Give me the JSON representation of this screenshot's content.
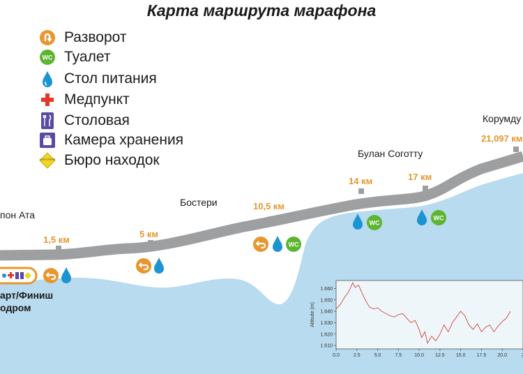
{
  "title": "Карта маршрута марафона",
  "legend": [
    {
      "icon": "u-turn-icon",
      "label": "Разворот"
    },
    {
      "icon": "toilet-icon",
      "label": "Туалет"
    },
    {
      "icon": "water-drop-icon",
      "label": "Стол питания"
    },
    {
      "icon": "medical-cross-icon",
      "label": "Медпункт"
    },
    {
      "icon": "cafeteria-icon",
      "label": "Столовая"
    },
    {
      "icon": "luggage-icon",
      "label": "Камера хранения"
    },
    {
      "icon": "lost-found-icon",
      "label": "Бюро находок"
    }
  ],
  "toilet_text": "WC",
  "lost_found_text": "Lost & found",
  "places": {
    "chyrpon": "пон Ата",
    "bosteri": "Бостери",
    "bulan": "Булан Соготту",
    "korumdu": "Корумду"
  },
  "start": {
    "line1": "арт/Финиш",
    "line2": "одром"
  },
  "km_markers": [
    "1,5 км",
    "5 км",
    "10,5 км",
    "14 км",
    "17 км",
    "21,097 км"
  ],
  "colors": {
    "route": "#9e9fa0",
    "water": "#b8dbef",
    "orange": "#e8962d",
    "green": "#5cb531",
    "blue": "#1b95d2",
    "red": "#e2382a",
    "purple": "#5b4aa3",
    "yellow": "#f2d51e"
  },
  "chart_data": {
    "type": "line",
    "ylabel": "Altitude (m)",
    "xlabel": "",
    "x_ticks": [
      "0.0",
      "2.5",
      "5.0",
      "7.5",
      "10.0",
      "12.5",
      "15.0",
      "17.5",
      "20.0",
      "2"
    ],
    "y_ticks": [
      "1.660",
      "1.650",
      "1.640",
      "1.630",
      "1.620",
      "1.610"
    ],
    "xlim": [
      0,
      22.5
    ],
    "ylim": [
      1.607,
      1.667
    ],
    "series": [
      {
        "x": [
          0,
          0.5,
          1.0,
          1.5,
          2.0,
          2.3,
          2.7,
          3.0,
          3.5,
          4.0,
          4.5,
          5.0,
          5.5,
          6.0,
          6.5,
          7.0,
          7.5,
          8.0,
          8.5,
          9.0,
          9.5,
          10.0,
          10.3,
          10.7,
          11.0,
          11.5,
          12.0,
          12.5,
          13.0,
          13.5,
          14.0,
          14.5,
          15.0,
          15.5,
          16.0,
          16.5,
          17.0,
          17.5,
          18.0,
          18.5,
          19.0,
          19.5,
          20.0,
          20.5,
          21.0
        ],
        "y": [
          1.642,
          1.646,
          1.652,
          1.657,
          1.665,
          1.661,
          1.663,
          1.658,
          1.65,
          1.644,
          1.642,
          1.643,
          1.64,
          1.638,
          1.636,
          1.635,
          1.637,
          1.638,
          1.634,
          1.63,
          1.632,
          1.624,
          1.617,
          1.622,
          1.612,
          1.618,
          1.614,
          1.62,
          1.628,
          1.622,
          1.63,
          1.635,
          1.64,
          1.636,
          1.628,
          1.624,
          1.629,
          1.622,
          1.626,
          1.628,
          1.622,
          1.627,
          1.631,
          1.634,
          1.64
        ]
      }
    ]
  }
}
